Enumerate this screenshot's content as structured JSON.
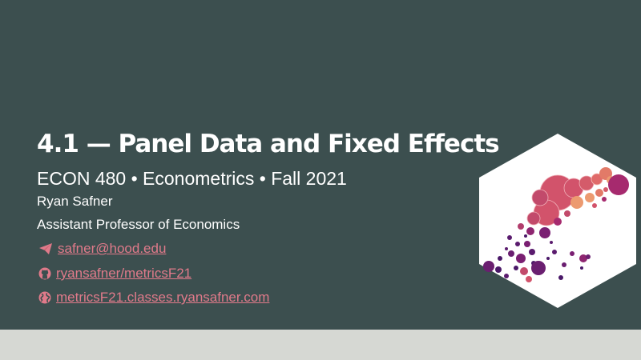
{
  "slide": {
    "title": "4.1 — Panel Data and Fixed Effects",
    "subtitle": "ECON 480 • Econometrics • Fall 2021",
    "author": "Ryan Safner",
    "author_title": "Assistant Professor of Economics",
    "email": "safner@hood.edu",
    "github": "ryansafner/metricsF21",
    "website": "metricsF21.classes.ryansafner.com"
  },
  "colors": {
    "background": "#3c4f4f",
    "footer": "#d6d8d3",
    "link": "#e07a8a",
    "text": "#ffffff"
  },
  "icons": {
    "email": "paper-plane-icon",
    "github": "github-icon",
    "website": "globe-icon"
  }
}
